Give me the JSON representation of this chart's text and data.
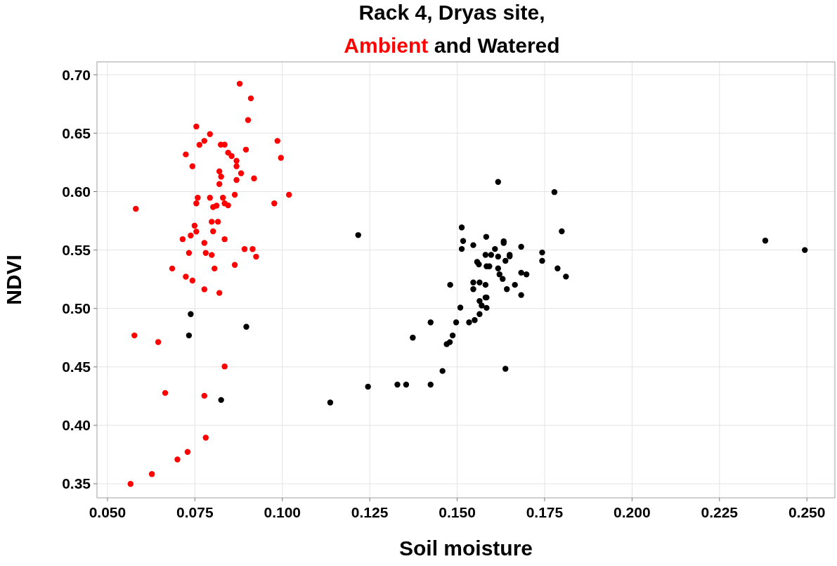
{
  "chart_data": {
    "type": "scatter",
    "title": "Rack 4, Dryas site,",
    "subtitle": "and",
    "xlabel": "Soil moisture",
    "ylabel": "NDVI",
    "xlim": [
      0.047,
      0.258
    ],
    "ylim": [
      0.338,
      0.711
    ],
    "xticks": [
      {
        "value": 0.05,
        "label": "0.050"
      },
      {
        "value": 0.075,
        "label": "0.075"
      },
      {
        "value": 0.1,
        "label": "0.100"
      },
      {
        "value": 0.125,
        "label": "0.125"
      },
      {
        "value": 0.15,
        "label": "0.150"
      },
      {
        "value": 0.175,
        "label": "0.175"
      },
      {
        "value": 0.2,
        "label": "0.200"
      },
      {
        "value": 0.225,
        "label": "0.225"
      },
      {
        "value": 0.25,
        "label": "0.250"
      }
    ],
    "yticks": [
      {
        "value": 0.35,
        "label": "0.35"
      },
      {
        "value": 0.4,
        "label": "0.40"
      },
      {
        "value": 0.45,
        "label": "0.45"
      },
      {
        "value": 0.5,
        "label": "0.50"
      },
      {
        "value": 0.55,
        "label": "0.55"
      },
      {
        "value": 0.6,
        "label": "0.60"
      },
      {
        "value": 0.65,
        "label": "0.65"
      },
      {
        "value": 0.7,
        "label": "0.70"
      }
    ],
    "grid": true,
    "marker": "circle",
    "series": [
      {
        "name": "Ambient",
        "color": "#ff0000",
        "x": [
          0.0878,
          0.091,
          0.0902,
          0.0754,
          0.0793,
          0.0777,
          0.0763,
          0.0824,
          0.0835,
          0.0986,
          0.0724,
          0.0896,
          0.0845,
          0.0855,
          0.0996,
          0.0869,
          0.0869,
          0.0743,
          0.082,
          0.0825,
          0.0882,
          0.0869,
          0.0919,
          0.082,
          0.1019,
          0.0864,
          0.0758,
          0.0793,
          0.083,
          0.0754,
          0.0977,
          0.0835,
          0.0845,
          0.0802,
          0.0812,
          0.0581,
          0.0798,
          0.0816,
          0.0749,
          0.0754,
          0.0802,
          0.0738,
          0.0715,
          0.0835,
          0.0777,
          0.0892,
          0.0915,
          0.0733,
          0.0781,
          0.0798,
          0.0925,
          0.0864,
          0.0685,
          0.0806,
          0.0724,
          0.0743,
          0.0777,
          0.082,
          0.0577,
          0.0645,
          0.0835,
          0.0665,
          0.0777,
          0.0781,
          0.0729,
          0.07,
          0.0627,
          0.0566
        ],
        "values": [
          0.6923,
          0.6798,
          0.6612,
          0.6557,
          0.6492,
          0.6434,
          0.64,
          0.6402,
          0.6402,
          0.6434,
          0.6318,
          0.6359,
          0.6333,
          0.6304,
          0.6289,
          0.6263,
          0.6217,
          0.6217,
          0.6173,
          0.6128,
          0.6157,
          0.6099,
          0.6113,
          0.6065,
          0.5973,
          0.5973,
          0.5947,
          0.5947,
          0.5947,
          0.5899,
          0.5899,
          0.5899,
          0.5882,
          0.5868,
          0.588,
          0.5853,
          0.5742,
          0.5742,
          0.5708,
          0.5658,
          0.566,
          0.5624,
          0.5593,
          0.5593,
          0.5561,
          0.5508,
          0.5508,
          0.5475,
          0.5475,
          0.5458,
          0.5443,
          0.5373,
          0.5342,
          0.5342,
          0.5272,
          0.5239,
          0.5164,
          0.5133,
          0.4769,
          0.4713,
          0.4504,
          0.4277,
          0.4253,
          0.3894,
          0.3773,
          0.3708,
          0.3583,
          0.3499
        ]
      },
      {
        "name": "Watered",
        "color": "#000000",
        "x": [
          0.0738,
          0.0733,
          0.0897,
          0.0825,
          0.1137,
          0.1245,
          0.1329,
          0.1354,
          0.1424,
          0.1458,
          0.1638,
          0.1373,
          0.1424,
          0.1497,
          0.1534,
          0.155,
          0.1564,
          0.1584,
          0.157,
          0.1564,
          0.1581,
          0.1584,
          0.1509,
          0.1487,
          0.147,
          0.1479,
          0.148,
          0.1546,
          0.1564,
          0.1581,
          0.1546,
          0.1642,
          0.1683,
          0.1665,
          0.1217,
          0.1513,
          0.1517,
          0.1513,
          0.1546,
          0.1583,
          0.1617,
          0.1778,
          0.1799,
          0.1608,
          0.1633,
          0.1633,
          0.1683,
          0.1743,
          0.1743,
          0.165,
          0.165,
          0.1581,
          0.1597,
          0.1617,
          0.1638,
          0.1557,
          0.1562,
          0.1584,
          0.1592,
          0.1617,
          0.1621,
          0.163,
          0.1683,
          0.1698,
          0.1787,
          0.1811,
          0.2381,
          0.2494
        ],
        "values": [
          0.4952,
          0.4769,
          0.4843,
          0.4217,
          0.4195,
          0.4331,
          0.4349,
          0.4349,
          0.4349,
          0.4465,
          0.4484,
          0.475,
          0.4881,
          0.4881,
          0.4881,
          0.4901,
          0.4952,
          0.5005,
          0.5025,
          0.5064,
          0.5094,
          0.5094,
          0.5007,
          0.4769,
          0.4695,
          0.4712,
          0.5202,
          0.5222,
          0.5222,
          0.5202,
          0.5165,
          0.5165,
          0.5115,
          0.5202,
          0.5628,
          0.5693,
          0.5577,
          0.5509,
          0.5542,
          0.5613,
          0.6083,
          0.5996,
          0.566,
          0.5509,
          0.5575,
          0.556,
          0.5528,
          0.5479,
          0.5408,
          0.5459,
          0.5446,
          0.5459,
          0.5459,
          0.5444,
          0.5408,
          0.5398,
          0.5377,
          0.5361,
          0.5361,
          0.5343,
          0.5292,
          0.5253,
          0.5306,
          0.5292,
          0.5343,
          0.5273,
          0.558,
          0.55
        ]
      }
    ]
  }
}
